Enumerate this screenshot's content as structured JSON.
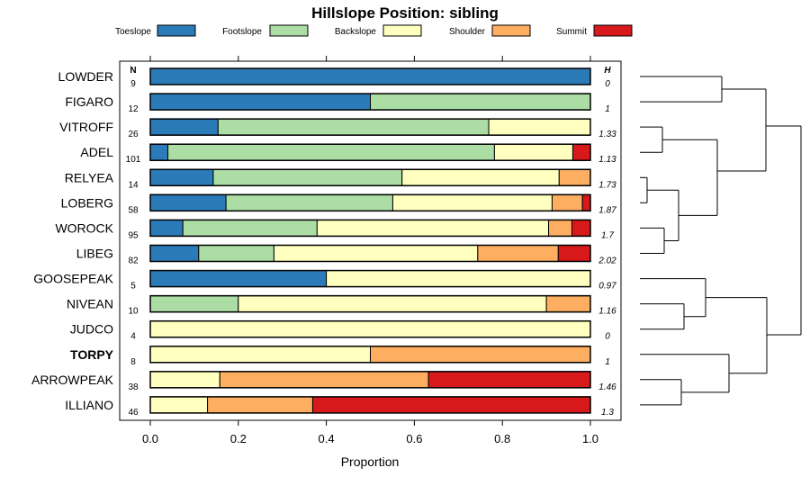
{
  "chart_data": {
    "type": "bar",
    "orientation": "horizontal-stacked",
    "title": "Hillslope Position: sibling",
    "xlabel": "Proportion",
    "xlim": [
      0,
      1
    ],
    "xticks": [
      "0.0",
      "0.2",
      "0.4",
      "0.6",
      "0.8",
      "1.0"
    ],
    "n_header": "N",
    "h_header": "H",
    "legend": [
      {
        "name": "Toeslope",
        "color": "#2b7bb9"
      },
      {
        "name": "Footslope",
        "color": "#abdda4"
      },
      {
        "name": "Backslope",
        "color": "#ffffbf"
      },
      {
        "name": "Shoulder",
        "color": "#fdae61"
      },
      {
        "name": "Summit",
        "color": "#d7191c"
      }
    ],
    "rows": [
      {
        "label": "LOWDER",
        "n": "9",
        "h": "0",
        "bold": false,
        "values": [
          1.0,
          0,
          0,
          0,
          0
        ]
      },
      {
        "label": "FIGARO",
        "n": "12",
        "h": "1",
        "bold": false,
        "values": [
          0.5,
          0.5,
          0,
          0,
          0
        ]
      },
      {
        "label": "VITROFF",
        "n": "26",
        "h": "1.33",
        "bold": false,
        "values": [
          0.154,
          0.615,
          0.231,
          0,
          0
        ]
      },
      {
        "label": "ADEL",
        "n": "101",
        "h": "1.13",
        "bold": false,
        "values": [
          0.04,
          0.742,
          0.178,
          0,
          0.04
        ]
      },
      {
        "label": "RELYEA",
        "n": "14",
        "h": "1.73",
        "bold": false,
        "values": [
          0.143,
          0.429,
          0.357,
          0.071,
          0
        ]
      },
      {
        "label": "LOBERG",
        "n": "58",
        "h": "1.87",
        "bold": false,
        "values": [
          0.172,
          0.379,
          0.362,
          0.069,
          0.018
        ]
      },
      {
        "label": "WOROCK",
        "n": "95",
        "h": "1.7",
        "bold": false,
        "values": [
          0.074,
          0.305,
          0.526,
          0.053,
          0.042
        ]
      },
      {
        "label": "LIBEG",
        "n": "82",
        "h": "2.02",
        "bold": false,
        "values": [
          0.11,
          0.171,
          0.463,
          0.183,
          0.073
        ]
      },
      {
        "label": "GOOSEPEAK",
        "n": "5",
        "h": "0.97",
        "bold": false,
        "values": [
          0.4,
          0,
          0.6,
          0,
          0
        ]
      },
      {
        "label": "NIVEAN",
        "n": "10",
        "h": "1.16",
        "bold": false,
        "values": [
          0,
          0.2,
          0.7,
          0.1,
          0
        ]
      },
      {
        "label": "JUDCO",
        "n": "4",
        "h": "0",
        "bold": false,
        "values": [
          0,
          0,
          1.0,
          0,
          0
        ]
      },
      {
        "label": "TORPY",
        "n": "8",
        "h": "1",
        "bold": true,
        "values": [
          0,
          0,
          0.5,
          0.5,
          0
        ]
      },
      {
        "label": "ARROWPEAK",
        "n": "38",
        "h": "1.46",
        "bold": false,
        "values": [
          0,
          0,
          0.158,
          0.474,
          0.368
        ]
      },
      {
        "label": "ILLIANO",
        "n": "46",
        "h": "1.3",
        "bold": false,
        "values": [
          0,
          0,
          0.13,
          0.239,
          0.631
        ]
      }
    ],
    "dendrogram_order": [
      "LOWDER",
      "FIGARO",
      "VITROFF",
      "ADEL",
      "RELYEA",
      "LOBERG",
      "WOROCK",
      "LIBEG",
      "GOOSEPEAK",
      "NIVEAN",
      "JUDCO",
      "TORPY",
      "ARROWPEAK",
      "ILLIANO"
    ]
  }
}
